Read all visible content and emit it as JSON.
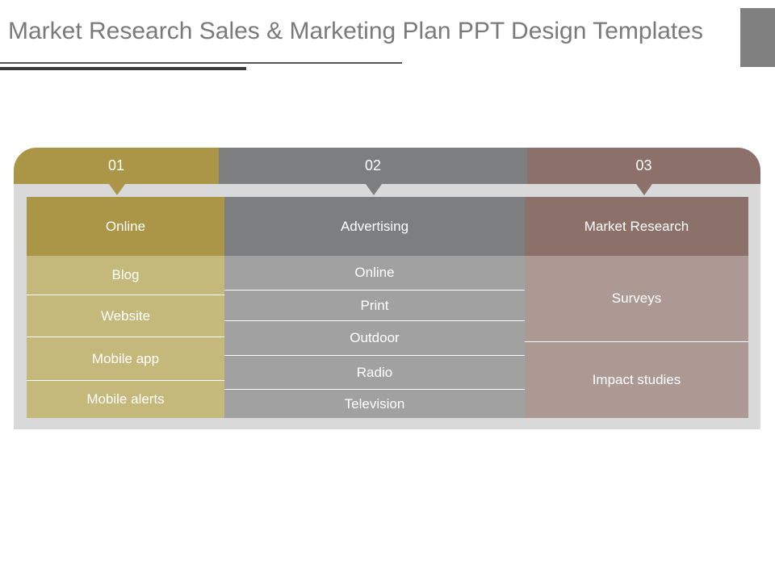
{
  "title": "Market Research Sales & Marketing Plan PPT Design Templates",
  "colors": {
    "olive_dark": "#ab9647",
    "olive_light": "#c4b87b",
    "gray_dark": "#7d7e7f",
    "gray_light": "#a1a1a2",
    "brown_dark": "#8c716a",
    "brown_light": "#ad9994",
    "panel": "#d9d9d9",
    "title_text": "#7a7a7a"
  },
  "tabs": [
    {
      "number": "01",
      "heading": "Online",
      "items": [
        "Blog",
        "Website",
        "Mobile app",
        "Mobile alerts"
      ]
    },
    {
      "number": "02",
      "heading": "Advertising",
      "items": [
        "Online",
        "Print",
        "Outdoor",
        "Radio",
        "Television"
      ]
    },
    {
      "number": "03",
      "heading": "Market Research",
      "items": [
        "Surveys",
        "Impact studies"
      ]
    }
  ]
}
